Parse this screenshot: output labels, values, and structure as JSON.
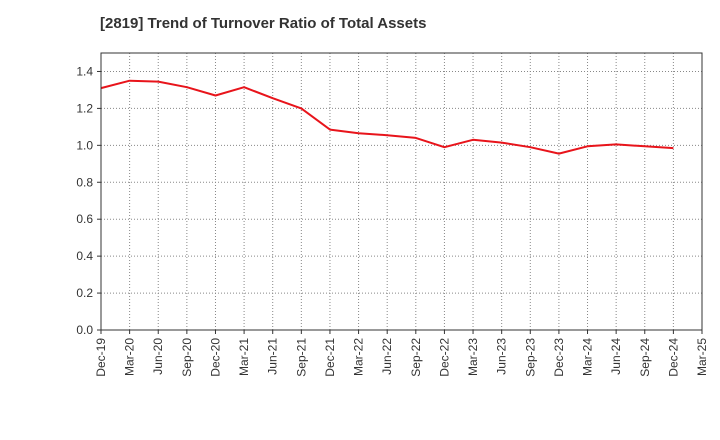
{
  "chart_data": {
    "type": "line",
    "title": "[2819]  Trend of Turnover Ratio of Total Assets",
    "xlabel": "",
    "ylabel": "",
    "ylim": [
      0,
      1.5
    ],
    "y_ticks": [
      0.0,
      0.2,
      0.4,
      0.6,
      0.8,
      1.0,
      1.2,
      1.4
    ],
    "y_tick_labels": [
      "0.0",
      "0.2",
      "0.4",
      "0.6",
      "0.8",
      "1.0",
      "1.2",
      "1.4"
    ],
    "grid": true,
    "categories": [
      "Dec-19",
      "Mar-20",
      "Jun-20",
      "Sep-20",
      "Dec-20",
      "Mar-21",
      "Jun-21",
      "Sep-21",
      "Dec-21",
      "Mar-22",
      "Jun-22",
      "Sep-22",
      "Dec-22",
      "Mar-23",
      "Jun-23",
      "Sep-23",
      "Dec-23",
      "Mar-24",
      "Jun-24",
      "Sep-24",
      "Dec-24",
      "Mar-25"
    ],
    "series": [
      {
        "color": "#e8141b",
        "values": [
          1.31,
          1.35,
          1.345,
          1.315,
          1.27,
          1.315,
          1.255,
          1.2,
          1.085,
          1.065,
          1.055,
          1.04,
          0.99,
          1.03,
          1.015,
          0.99,
          0.955,
          0.995,
          1.005,
          0.995,
          0.985,
          null
        ]
      }
    ]
  }
}
